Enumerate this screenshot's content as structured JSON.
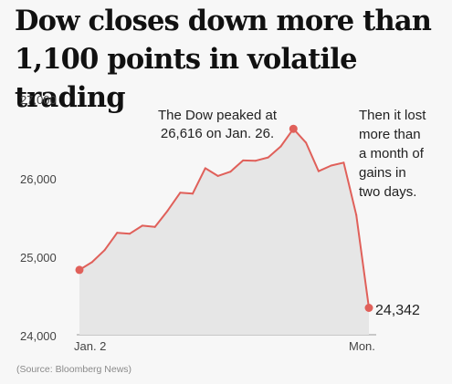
{
  "headline": "Dow closes down more than 1,100 points in volatile trading",
  "source": "(Source: Bloomberg News)",
  "colors": {
    "line": "#e0605a",
    "area": "#e6e6e6",
    "dot": "#e0605a"
  },
  "chart_data": {
    "type": "line",
    "title": "",
    "xlabel": "",
    "ylabel": "",
    "ylim": [
      24000,
      27000
    ],
    "grid": false,
    "y_ticks": [
      24000,
      25000,
      26000,
      27000
    ],
    "y_tick_labels": [
      "24,000",
      "25,000",
      "26,000",
      "27,000"
    ],
    "x_tick_labels": {
      "first": "Jan. 2",
      "last": "Mon."
    },
    "series": [
      {
        "values": [
          24824,
          24922,
          25075,
          25295,
          25283,
          25385,
          25369,
          25574,
          25804,
          25792,
          26115,
          26017,
          26071,
          26214,
          26210,
          26252,
          26392,
          26616,
          26439,
          26077,
          26149,
          26186,
          25520,
          24342
        ]
      }
    ],
    "annotations": [
      {
        "target": "peak",
        "lines": [
          "The Dow peaked at",
          "26,616 on Jan. 26."
        ]
      },
      {
        "target": "right",
        "lines": [
          "Then it lost",
          "more than",
          "a month of",
          "gains in",
          "two days."
        ]
      }
    ],
    "end_label": "24,342"
  }
}
